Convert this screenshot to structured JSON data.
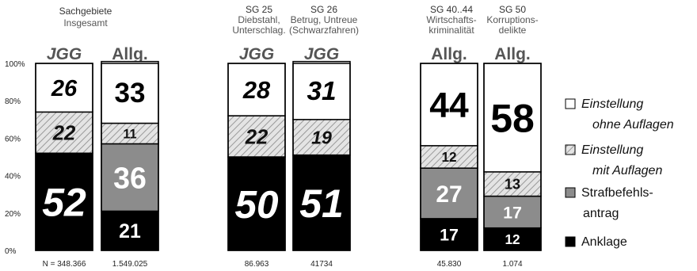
{
  "chart_data": {
    "type": "bar",
    "stacked": "100%",
    "y_ticks": [
      "0%",
      "20%",
      "40%",
      "60%",
      "80%",
      "100%"
    ],
    "ylim": [
      0,
      100
    ],
    "grid": false,
    "legend_position": "right",
    "colors": {
      "Anklage": "#000000",
      "Strafbefehlsantrag": "#8c8c8c",
      "Einstellung mit Auflagen": "hatched #c8c8c8",
      "Einstellung ohne Auflagen": "#ffffff"
    },
    "legend": [
      {
        "key": "ohne",
        "lines": [
          "Einstellung",
          "ohne Auflagen"
        ],
        "italic": true,
        "swatch": "white"
      },
      {
        "key": "mit",
        "lines": [
          "Einstellung",
          "mit Auflagen"
        ],
        "italic": true,
        "swatch": "hatched"
      },
      {
        "key": "strafbefehl",
        "lines": [
          "Strafbefehls-",
          "antrag"
        ],
        "italic": false,
        "swatch": "gray"
      },
      {
        "key": "anklage",
        "lines": [
          "Anklage"
        ],
        "italic": false,
        "swatch": "black"
      }
    ],
    "groups": [
      {
        "id": "sachgebiete",
        "title_lines": [
          "Sachgebiete",
          "Insgesamt"
        ]
      },
      {
        "id": "sg25",
        "title_lines": [
          "SG 25",
          "Diebstahl,",
          "Unterschlag."
        ]
      },
      {
        "id": "sg26",
        "title_lines": [
          "SG 26",
          "Betrug, Untreue",
          "(Schwarzfahren)"
        ]
      },
      {
        "id": "sg4044",
        "title_lines": [
          "SG 40..44",
          "Wirtschafts-",
          "kriminalität"
        ]
      },
      {
        "id": "sg50",
        "title_lines": [
          "SG 50",
          "Korruptions-",
          "delikte"
        ]
      }
    ],
    "bars": [
      {
        "group": "sachgebiete",
        "court": "JGG",
        "italic": true,
        "n": "N = 348.366",
        "anklage": 52,
        "strafbefehl": null,
        "mit": 22,
        "ohne": 26
      },
      {
        "group": "sachgebiete",
        "court": "Allg.",
        "italic": false,
        "n": "1.549.025",
        "anklage": 21,
        "strafbefehl": 36,
        "mit": 11,
        "ohne": 33
      },
      {
        "group": "sg25",
        "court": "JGG",
        "italic": true,
        "n": "86.963",
        "anklage": 50,
        "strafbefehl": null,
        "mit": 22,
        "ohne": 28
      },
      {
        "group": "sg26",
        "court": "JGG",
        "italic": true,
        "n": "41734",
        "anklage": 51,
        "strafbefehl": null,
        "mit": 19,
        "ohne": 31
      },
      {
        "group": "sg4044",
        "court": "Allg.",
        "italic": false,
        "n": "45.830",
        "anklage": 17,
        "strafbefehl": 27,
        "mit": 12,
        "ohne": 44
      },
      {
        "group": "sg50",
        "court": "Allg.",
        "italic": false,
        "n": "1.074",
        "anklage": 12,
        "strafbefehl": 17,
        "mit": 13,
        "ohne": 58
      }
    ]
  }
}
